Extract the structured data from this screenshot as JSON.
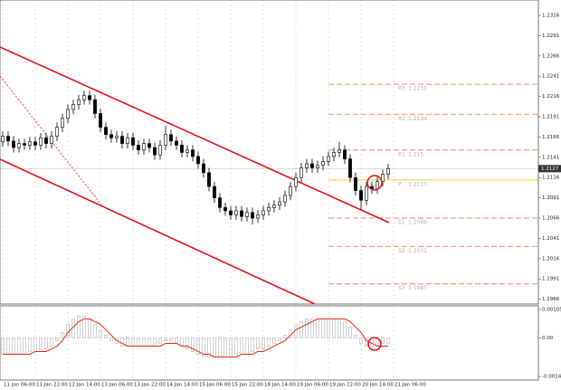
{
  "chart_data": {
    "type": "candlestick",
    "ohlc": [
      [
        1.216,
        1.2173,
        1.2154,
        1.2167
      ],
      [
        1.2167,
        1.2173,
        1.2155,
        1.2161
      ],
      [
        1.2161,
        1.2167,
        1.2147,
        1.2153
      ],
      [
        1.2153,
        1.2164,
        1.2147,
        1.2158
      ],
      [
        1.2158,
        1.2164,
        1.215,
        1.2156
      ],
      [
        1.2156,
        1.2166,
        1.215,
        1.216
      ],
      [
        1.216,
        1.2166,
        1.215,
        1.2156
      ],
      [
        1.2156,
        1.2171,
        1.215,
        1.2165
      ],
      [
        1.2165,
        1.2171,
        1.2152,
        1.2158
      ],
      [
        1.2158,
        1.2173,
        1.2152,
        1.2167
      ],
      [
        1.2167,
        1.2184,
        1.2161,
        1.2178
      ],
      [
        1.2178,
        1.2195,
        1.2172,
        1.2189
      ],
      [
        1.2189,
        1.2206,
        1.2183,
        1.22
      ],
      [
        1.22,
        1.2212,
        1.2194,
        1.2206
      ],
      [
        1.2206,
        1.2218,
        1.22,
        1.2212
      ],
      [
        1.2212,
        1.2223,
        1.2206,
        1.2217
      ],
      [
        1.2217,
        1.2223,
        1.2206,
        1.2212
      ],
      [
        1.2212,
        1.2218,
        1.2189,
        1.2195
      ],
      [
        1.2195,
        1.2201,
        1.2172,
        1.2178
      ],
      [
        1.2178,
        1.2184,
        1.2163,
        1.2169
      ],
      [
        1.2169,
        1.2175,
        1.2159,
        1.2165
      ],
      [
        1.2165,
        1.2173,
        1.2159,
        1.2167
      ],
      [
        1.2167,
        1.2173,
        1.2152,
        1.2158
      ],
      [
        1.2158,
        1.2171,
        1.2152,
        1.2165
      ],
      [
        1.2165,
        1.2171,
        1.215,
        1.2156
      ],
      [
        1.2156,
        1.2162,
        1.2144,
        1.215
      ],
      [
        1.215,
        1.2164,
        1.2144,
        1.2158
      ],
      [
        1.2158,
        1.2164,
        1.2147,
        1.2153
      ],
      [
        1.2153,
        1.2159,
        1.2138,
        1.2144
      ],
      [
        1.2144,
        1.2162,
        1.2138,
        1.2156
      ],
      [
        1.2156,
        1.218,
        1.215,
        1.2169
      ],
      [
        1.2169,
        1.2175,
        1.2155,
        1.2161
      ],
      [
        1.2161,
        1.2167,
        1.215,
        1.2156
      ],
      [
        1.2156,
        1.2162,
        1.2141,
        1.2147
      ],
      [
        1.2147,
        1.2156,
        1.2141,
        1.215
      ],
      [
        1.215,
        1.2156,
        1.2136,
        1.2142
      ],
      [
        1.2142,
        1.2148,
        1.2127,
        1.2133
      ],
      [
        1.2133,
        1.2139,
        1.2116,
        1.2122
      ],
      [
        1.2122,
        1.2128,
        1.2099,
        1.2105
      ],
      [
        1.2105,
        1.2111,
        1.2085,
        1.2091
      ],
      [
        1.2091,
        1.2097,
        1.2073,
        1.2079
      ],
      [
        1.2079,
        1.2085,
        1.2069,
        1.2075
      ],
      [
        1.2075,
        1.2081,
        1.2064,
        1.207
      ],
      [
        1.207,
        1.2081,
        1.2064,
        1.2075
      ],
      [
        1.2075,
        1.2081,
        1.2062,
        1.2068
      ],
      [
        1.2068,
        1.2079,
        1.2062,
        1.2073
      ],
      [
        1.2073,
        1.2079,
        1.2058,
        1.2066
      ],
      [
        1.2066,
        1.2076,
        1.206,
        1.207
      ],
      [
        1.207,
        1.2081,
        1.2064,
        1.2075
      ],
      [
        1.2075,
        1.2085,
        1.2069,
        1.2079
      ],
      [
        1.2079,
        1.2088,
        1.2073,
        1.2082
      ],
      [
        1.2082,
        1.2092,
        1.2076,
        1.2086
      ],
      [
        1.2086,
        1.21,
        1.208,
        1.2094
      ],
      [
        1.2094,
        1.2111,
        1.2088,
        1.2105
      ],
      [
        1.2105,
        1.2122,
        1.2099,
        1.2116
      ],
      [
        1.2116,
        1.2134,
        1.211,
        1.2128
      ],
      [
        1.2128,
        1.2139,
        1.2122,
        1.2133
      ],
      [
        1.2133,
        1.2139,
        1.2122,
        1.2128
      ],
      [
        1.2128,
        1.2137,
        1.2122,
        1.2131
      ],
      [
        1.2131,
        1.2142,
        1.2125,
        1.2136
      ],
      [
        1.2136,
        1.2148,
        1.213,
        1.2142
      ],
      [
        1.2142,
        1.2153,
        1.2136,
        1.2147
      ],
      [
        1.2147,
        1.216,
        1.2141,
        1.215
      ],
      [
        1.215,
        1.2156,
        1.2133,
        1.2139
      ],
      [
        1.2139,
        1.2145,
        1.211,
        1.2116
      ],
      [
        1.2116,
        1.2122,
        1.2094,
        1.21
      ],
      [
        1.21,
        1.2106,
        1.2076,
        1.2088
      ],
      [
        1.2088,
        1.2111,
        1.2082,
        1.2105
      ],
      [
        1.2105,
        1.2111,
        1.2096,
        1.2102
      ],
      [
        1.2102,
        1.2117,
        1.2096,
        1.2111
      ],
      [
        1.2111,
        1.2126,
        1.2105,
        1.212
      ],
      [
        1.212,
        1.2133,
        1.2114,
        1.2127
      ]
    ],
    "ylim": [
      1.196,
      1.2335
    ],
    "yticks": [
      1.2316,
      1.2291,
      1.2266,
      1.2241,
      1.2216,
      1.2191,
      1.2166,
      1.2141,
      1.2116,
      1.2091,
      1.2066,
      1.2041,
      1.2016,
      1.1991,
      1.1966
    ],
    "xticks": [
      {
        "value": 0,
        "label": "11 Jan 06:00"
      },
      {
        "value": 6,
        "label": "11 Jan 22:00"
      },
      {
        "value": 12,
        "label": "12 Jan 14:00"
      },
      {
        "value": 18,
        "label": "13 Jan 06:00"
      },
      {
        "value": 24,
        "label": "13 Jan 22:00"
      },
      {
        "value": 30,
        "label": "14 Jan 14:00"
      },
      {
        "value": 36,
        "label": "15 Jan 06:00"
      },
      {
        "value": 42,
        "label": "15 Jan 22:00"
      },
      {
        "value": 48,
        "label": "18 Jan 14:00"
      },
      {
        "value": 54,
        "label": "19 Jan 06:00"
      },
      {
        "value": 60,
        "label": "19 Jan 22:00"
      },
      {
        "value": 66,
        "label": "20 Jan 14:00"
      },
      {
        "value": 72,
        "label": "21 Jan 06:00"
      }
    ],
    "last_price": 1.2127,
    "pivots": [
      {
        "name": "R3",
        "value": 1.2231,
        "color": "#f7a07a"
      },
      {
        "name": "R2",
        "value": 1.2194,
        "color": "#f7a07a"
      },
      {
        "name": "R1",
        "value": 1.215,
        "color": "#f7a07a"
      },
      {
        "name": "P",
        "value": 1.2113,
        "color": "#f2d21b"
      },
      {
        "name": "S1",
        "value": 1.2066,
        "color": "#f7a07a"
      },
      {
        "name": "S2",
        "value": 1.2031,
        "color": "#f7a07a"
      },
      {
        "name": "S3",
        "value": 1.1985,
        "color": "#f7a07a"
      }
    ],
    "macd": {
      "histogram": [
        -0.0006,
        -0.0006,
        -0.0006,
        -0.0006,
        -0.0006,
        -0.0005,
        -0.0005,
        -0.0005,
        -0.0004,
        -0.0003,
        -0.0001,
        0.0002,
        0.0005,
        0.0007,
        0.0008,
        0.0008,
        0.0007,
        0.0005,
        0.0003,
        0.0001,
        -0.0001,
        -0.0002,
        -0.0003,
        -0.0003,
        -0.0003,
        -0.0003,
        -0.0003,
        -0.0003,
        -0.0003,
        -0.0002,
        -0.0001,
        -0.0001,
        -0.0002,
        -0.0003,
        -0.0004,
        -0.0005,
        -0.0006,
        -0.0007,
        -0.0007,
        -0.0007,
        -0.0007,
        -0.0007,
        -0.0007,
        -0.0006,
        -0.0006,
        -0.0006,
        -0.0005,
        -0.0004,
        -0.0004,
        -0.0003,
        -0.0002,
        -0.0001,
        0.0001,
        0.0003,
        0.0005,
        0.0006,
        0.0007,
        0.0007,
        0.0007,
        0.0007,
        0.0007,
        0.0007,
        0.0007,
        0.0006,
        0.0004,
        0.0001,
        -0.0002,
        -0.0003,
        -0.0003,
        -0.0003,
        -0.0002,
        -0.0002
      ],
      "signal": [
        -0.0006,
        -0.0006,
        -0.0006,
        -0.0006,
        -0.0006,
        -0.0006,
        -0.0005,
        -0.0005,
        -0.0005,
        -0.0004,
        -0.0003,
        -0.0001,
        0.0002,
        0.0004,
        0.0006,
        0.0007,
        0.0007,
        0.0006,
        0.0005,
        0.0003,
        0.0001,
        -0.0001,
        -0.0002,
        -0.0003,
        -0.0003,
        -0.0003,
        -0.0003,
        -0.0003,
        -0.0003,
        -0.0003,
        -0.0002,
        -0.0002,
        -0.0002,
        -0.0003,
        -0.0003,
        -0.0004,
        -0.0005,
        -0.0006,
        -0.0006,
        -0.0007,
        -0.0007,
        -0.0007,
        -0.0007,
        -0.0007,
        -0.0006,
        -0.0006,
        -0.0006,
        -0.0005,
        -0.0005,
        -0.0004,
        -0.0003,
        -0.0002,
        -0.0001,
        0.0001,
        0.0003,
        0.0004,
        0.0005,
        0.0006,
        0.0007,
        0.0007,
        0.0007,
        0.0007,
        0.0007,
        0.0007,
        0.0006,
        0.0004,
        0.0002,
        -0.0001,
        -0.0002,
        -0.0003,
        -0.0003,
        -0.0003
      ],
      "signal_color": "#e8261c",
      "histogram_color": "#a0a0a0",
      "ylim": [
        -0.00155,
        0.00118
      ],
      "yticks": [
        0.00105,
        {
          "value": 0,
          "label": "0.00"
        },
        -0.00142
      ]
    }
  }
}
